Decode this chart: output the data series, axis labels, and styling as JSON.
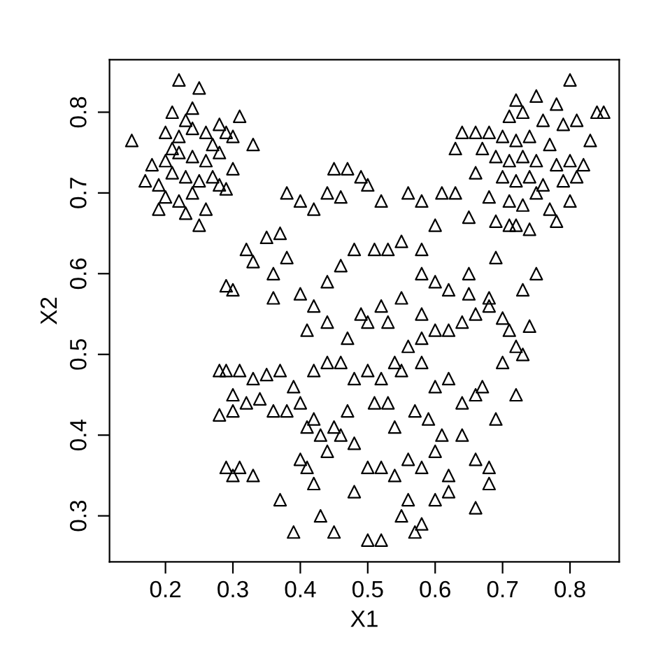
{
  "chart_data": {
    "type": "scatter",
    "xlabel": "X1",
    "ylabel": "X2",
    "marker": "triangle",
    "grid": false,
    "legend": false,
    "xlim": [
      0.117,
      0.873
    ],
    "ylim": [
      0.243,
      0.865
    ],
    "xticks": [
      0.2,
      0.3,
      0.4,
      0.5,
      0.6,
      0.7,
      0.8
    ],
    "yticks": [
      0.3,
      0.4,
      0.5,
      0.6,
      0.7,
      0.8
    ],
    "series": [
      {
        "color": "#000000",
        "x": [
          0.15,
          0.22,
          0.25,
          0.24,
          0.21,
          0.23,
          0.2,
          0.22,
          0.24,
          0.26,
          0.28,
          0.29,
          0.31,
          0.33,
          0.18,
          0.2,
          0.22,
          0.24,
          0.26,
          0.28,
          0.3,
          0.17,
          0.19,
          0.21,
          0.23,
          0.25,
          0.27,
          0.29,
          0.2,
          0.22,
          0.24,
          0.19,
          0.23,
          0.26,
          0.28,
          0.25,
          0.3,
          0.27,
          0.21,
          0.8,
          0.72,
          0.75,
          0.78,
          0.84,
          0.71,
          0.73,
          0.76,
          0.79,
          0.81,
          0.64,
          0.66,
          0.68,
          0.7,
          0.72,
          0.74,
          0.77,
          0.83,
          0.63,
          0.67,
          0.69,
          0.71,
          0.73,
          0.75,
          0.78,
          0.8,
          0.82,
          0.66,
          0.7,
          0.72,
          0.74,
          0.76,
          0.79,
          0.81,
          0.68,
          0.71,
          0.73,
          0.75,
          0.77,
          0.8,
          0.69,
          0.72,
          0.74,
          0.78,
          0.65,
          0.85,
          0.45,
          0.47,
          0.38,
          0.4,
          0.42,
          0.44,
          0.46,
          0.49,
          0.5,
          0.35,
          0.37,
          0.32,
          0.33,
          0.36,
          0.38,
          0.29,
          0.3,
          0.36,
          0.4,
          0.42,
          0.44,
          0.46,
          0.48,
          0.51,
          0.53,
          0.55,
          0.58,
          0.52,
          0.56,
          0.58,
          0.61,
          0.63,
          0.6,
          0.58,
          0.6,
          0.62,
          0.65,
          0.68,
          0.55,
          0.52,
          0.49,
          0.44,
          0.41,
          0.47,
          0.5,
          0.28,
          0.29,
          0.31,
          0.33,
          0.35,
          0.37,
          0.39,
          0.3,
          0.32,
          0.34,
          0.36,
          0.38,
          0.4,
          0.42,
          0.28,
          0.3,
          0.42,
          0.44,
          0.46,
          0.48,
          0.5,
          0.52,
          0.54,
          0.56,
          0.58,
          0.6,
          0.62,
          0.64,
          0.66,
          0.68,
          0.7,
          0.71,
          0.73,
          0.75,
          0.74,
          0.67,
          0.66,
          0.64,
          0.62,
          0.58,
          0.6,
          0.55,
          0.53,
          0.51,
          0.47,
          0.45,
          0.43,
          0.41,
          0.7,
          0.72,
          0.73,
          0.29,
          0.3,
          0.31,
          0.33,
          0.37,
          0.4,
          0.41,
          0.42,
          0.44,
          0.46,
          0.48,
          0.5,
          0.52,
          0.54,
          0.56,
          0.58,
          0.6,
          0.62,
          0.64,
          0.66,
          0.68,
          0.69,
          0.39,
          0.43,
          0.45,
          0.48,
          0.5,
          0.52,
          0.55,
          0.57,
          0.58,
          0.6,
          0.62,
          0.66,
          0.68,
          0.56,
          0.54,
          0.57,
          0.59,
          0.61,
          0.72,
          0.65,
          0.69,
          0.71,
          0.53,
          0.58
        ],
        "values": [
          0.765,
          0.84,
          0.83,
          0.805,
          0.8,
          0.79,
          0.775,
          0.77,
          0.78,
          0.775,
          0.785,
          0.775,
          0.795,
          0.76,
          0.735,
          0.74,
          0.75,
          0.745,
          0.74,
          0.75,
          0.73,
          0.715,
          0.71,
          0.725,
          0.72,
          0.715,
          0.72,
          0.705,
          0.695,
          0.69,
          0.7,
          0.68,
          0.675,
          0.68,
          0.71,
          0.66,
          0.77,
          0.76,
          0.755,
          0.84,
          0.815,
          0.82,
          0.81,
          0.8,
          0.795,
          0.8,
          0.79,
          0.785,
          0.79,
          0.775,
          0.775,
          0.775,
          0.77,
          0.765,
          0.77,
          0.76,
          0.765,
          0.755,
          0.755,
          0.745,
          0.74,
          0.745,
          0.74,
          0.735,
          0.74,
          0.735,
          0.725,
          0.72,
          0.715,
          0.72,
          0.71,
          0.715,
          0.72,
          0.695,
          0.69,
          0.685,
          0.7,
          0.68,
          0.69,
          0.665,
          0.66,
          0.655,
          0.665,
          0.67,
          0.8,
          0.73,
          0.73,
          0.7,
          0.69,
          0.68,
          0.7,
          0.695,
          0.72,
          0.71,
          0.645,
          0.65,
          0.63,
          0.615,
          0.6,
          0.62,
          0.585,
          0.58,
          0.57,
          0.575,
          0.56,
          0.59,
          0.61,
          0.63,
          0.63,
          0.63,
          0.64,
          0.63,
          0.69,
          0.7,
          0.69,
          0.7,
          0.7,
          0.66,
          0.6,
          0.59,
          0.58,
          0.575,
          0.57,
          0.57,
          0.56,
          0.55,
          0.54,
          0.53,
          0.52,
          0.54,
          0.48,
          0.48,
          0.48,
          0.47,
          0.475,
          0.48,
          0.46,
          0.45,
          0.44,
          0.445,
          0.43,
          0.43,
          0.44,
          0.42,
          0.425,
          0.43,
          0.48,
          0.49,
          0.49,
          0.47,
          0.48,
          0.47,
          0.49,
          0.51,
          0.52,
          0.53,
          0.53,
          0.54,
          0.55,
          0.56,
          0.545,
          0.53,
          0.58,
          0.6,
          0.535,
          0.46,
          0.45,
          0.44,
          0.47,
          0.49,
          0.46,
          0.48,
          0.44,
          0.44,
          0.43,
          0.41,
          0.4,
          0.41,
          0.49,
          0.51,
          0.5,
          0.36,
          0.35,
          0.36,
          0.35,
          0.32,
          0.37,
          0.36,
          0.34,
          0.38,
          0.4,
          0.39,
          0.36,
          0.36,
          0.35,
          0.37,
          0.36,
          0.38,
          0.35,
          0.4,
          0.37,
          0.36,
          0.42,
          0.28,
          0.3,
          0.28,
          0.33,
          0.27,
          0.27,
          0.3,
          0.28,
          0.29,
          0.32,
          0.33,
          0.31,
          0.34,
          0.32,
          0.41,
          0.43,
          0.42,
          0.4,
          0.45,
          0.6,
          0.62,
          0.66,
          0.54,
          0.55
        ]
      }
    ]
  }
}
